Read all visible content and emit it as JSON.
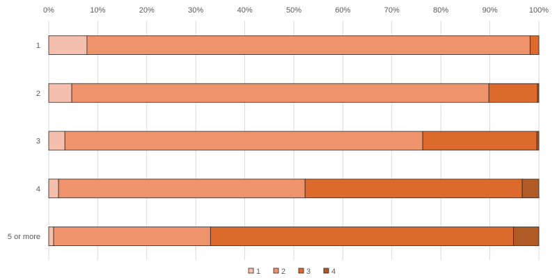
{
  "chart_data": {
    "type": "bar",
    "orientation": "horizontal",
    "stacking": "percent",
    "categories": [
      "1",
      "2",
      "3",
      "4",
      "5 or more"
    ],
    "series": [
      {
        "name": "1",
        "color": "#f4bfad",
        "values": [
          7.8,
          4.7,
          3.3,
          2.0,
          1.0
        ]
      },
      {
        "name": "2",
        "color": "#ee936c",
        "values": [
          90.4,
          85.1,
          73.0,
          50.3,
          32.0
        ]
      },
      {
        "name": "3",
        "color": "#dc6a2c",
        "values": [
          1.8,
          9.9,
          23.3,
          44.3,
          61.8
        ]
      },
      {
        "name": "4",
        "color": "#b05a25",
        "values": [
          0.0,
          0.3,
          0.4,
          3.4,
          5.2
        ]
      }
    ],
    "xlim": [
      0,
      100
    ],
    "x_ticks": [
      "0%",
      "10%",
      "20%",
      "30%",
      "40%",
      "50%",
      "60%",
      "70%",
      "80%",
      "90%",
      "100%"
    ],
    "x_axis_position": "top",
    "grid": true,
    "legend": "bottom"
  }
}
